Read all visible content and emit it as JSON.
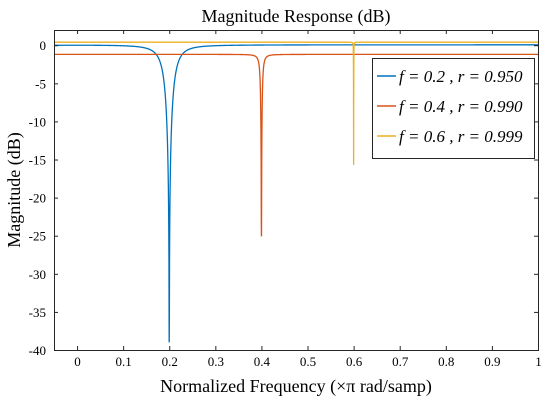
{
  "chart_data": {
    "type": "line",
    "title": "Magnitude Response (dB)",
    "xlabel": "Normalized Frequency (×π rad/samp)",
    "ylabel": "Magnitude (dB)",
    "xlim": [
      -0.05,
      1.0
    ],
    "ylim": [
      -40,
      2
    ],
    "xticks": [
      0,
      0.1,
      0.2,
      0.3,
      0.4,
      0.5,
      0.6,
      0.7,
      0.8,
      0.9,
      1
    ],
    "xtick_labels": [
      "0",
      "0.1",
      "0.2",
      "0.3",
      "0.4",
      "0.5",
      "0.6",
      "0.7",
      "0.8",
      "0.9",
      "1"
    ],
    "yticks": [
      0,
      -5,
      -10,
      -15,
      -20,
      -25,
      -30,
      -35,
      -40
    ],
    "ytick_labels": [
      "0",
      "-5",
      "-10",
      "-15",
      "-20",
      "-25",
      "-30",
      "-35",
      "-40"
    ],
    "grid": false,
    "legend_position": "top-right",
    "series": [
      {
        "name": "f = 0.2 , r = 0.950",
        "color": "#0072BD",
        "notch_freq": 0.2,
        "pole_radius": 0.95,
        "notch_depth_db": -39,
        "passband_db": 0
      },
      {
        "name": "f = 0.4 , r = 0.990",
        "color": "#D95319",
        "notch_freq": 0.4,
        "pole_radius": 0.99,
        "notch_depth_db": -25,
        "passband_db": -1.2
      },
      {
        "name": "f = 0.6 , r = 0.999",
        "color": "#EDB120",
        "notch_freq": 0.6,
        "pole_radius": 0.999,
        "notch_depth_db": -15.7,
        "passband_db": 0.4
      }
    ]
  }
}
